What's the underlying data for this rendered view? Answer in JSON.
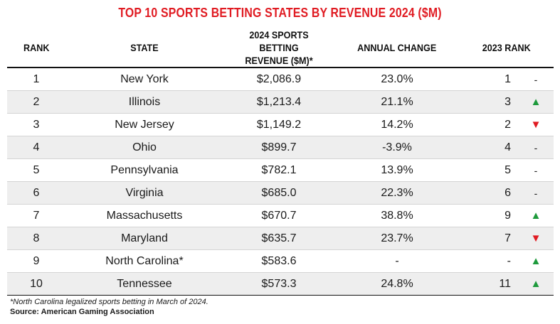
{
  "title": "TOP 10 SPORTS BETTING STATES BY REVENUE 2024 ($M)",
  "colors": {
    "title": "#e01b22",
    "up": "#1e9a3c",
    "down": "#e01b22",
    "stripe": "#eeeeee"
  },
  "headers": {
    "rank": "RANK",
    "state": "STATE",
    "revenue_line1": "2024 SPORTS BETTING",
    "revenue_line2": "REVENUE ($M)*",
    "change": "ANNUAL CHANGE",
    "rank_2023": "2023 RANK"
  },
  "rows": [
    {
      "rank": "1",
      "state": "New York",
      "revenue": "$2,086.9",
      "change": "23.0%",
      "rank_2023": "1",
      "trend": "-",
      "trend_icon": "dash"
    },
    {
      "rank": "2",
      "state": "Illinois",
      "revenue": "$1,213.4",
      "change": "21.1%",
      "rank_2023": "3",
      "trend": "▲",
      "trend_icon": "up-triangle-icon"
    },
    {
      "rank": "3",
      "state": "New Jersey",
      "revenue": "$1,149.2",
      "change": "14.2%",
      "rank_2023": "2",
      "trend": "▼",
      "trend_icon": "down-triangle-icon"
    },
    {
      "rank": "4",
      "state": "Ohio",
      "revenue": "$899.7",
      "change": "-3.9%",
      "rank_2023": "4",
      "trend": "-",
      "trend_icon": "dash"
    },
    {
      "rank": "5",
      "state": "Pennsylvania",
      "revenue": "$782.1",
      "change": "13.9%",
      "rank_2023": "5",
      "trend": "-",
      "trend_icon": "dash"
    },
    {
      "rank": "6",
      "state": "Virginia",
      "revenue": "$685.0",
      "change": "22.3%",
      "rank_2023": "6",
      "trend": "-",
      "trend_icon": "dash"
    },
    {
      "rank": "7",
      "state": "Massachusetts",
      "revenue": "$670.7",
      "change": "38.8%",
      "rank_2023": "9",
      "trend": "▲",
      "trend_icon": "up-triangle-icon"
    },
    {
      "rank": "8",
      "state": "Maryland",
      "revenue": "$635.7",
      "change": "23.7%",
      "rank_2023": "7",
      "trend": "▼",
      "trend_icon": "down-triangle-icon"
    },
    {
      "rank": "9",
      "state": "North Carolina*",
      "revenue": "$583.6",
      "change": "-",
      "rank_2023": "-",
      "trend": "▲",
      "trend_icon": "up-triangle-icon"
    },
    {
      "rank": "10",
      "state": "Tennessee",
      "revenue": "$573.3",
      "change": "24.8%",
      "rank_2023": "11",
      "trend": "▲",
      "trend_icon": "up-triangle-icon"
    }
  ],
  "footnote": "*North Carolina legalized sports betting in March of 2024.",
  "source": "Source: American Gaming Association"
}
